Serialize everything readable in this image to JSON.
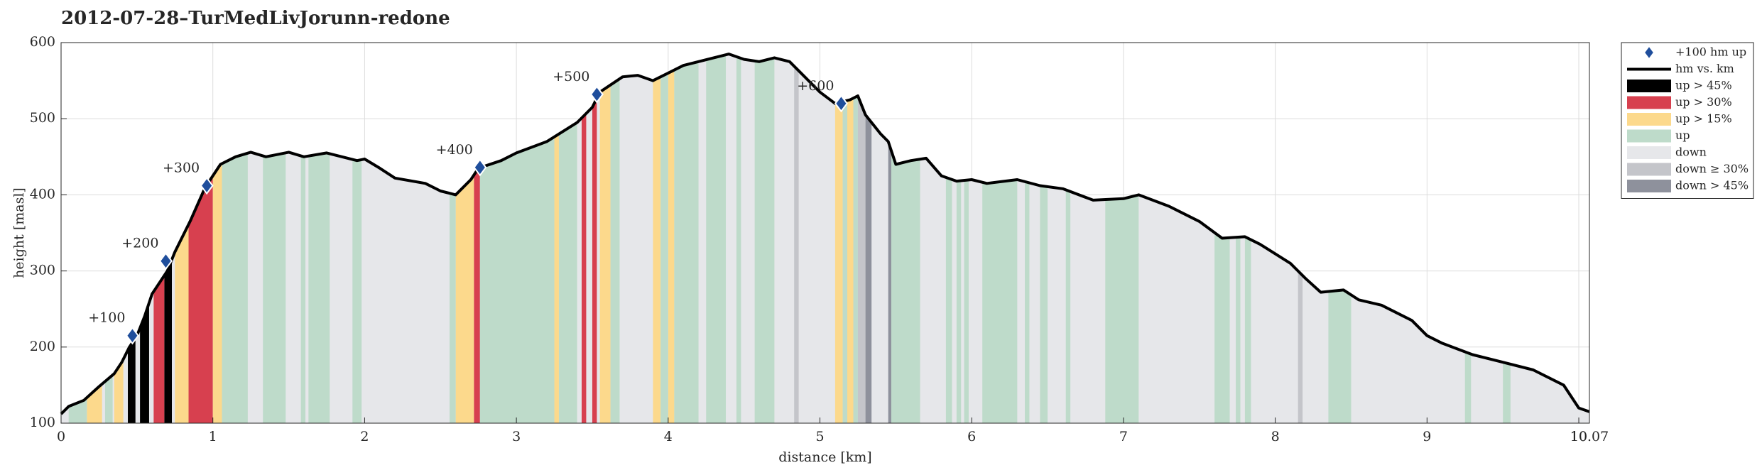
{
  "chart_data": {
    "type": "line",
    "title": "2012-07-28–TurMedLivJorunn-redone",
    "xlabel": "distance [km]",
    "ylabel": "height [masl]",
    "xlim": [
      0,
      10.07
    ],
    "xticks": [
      0,
      1,
      2,
      3,
      4,
      5,
      6,
      7,
      8,
      9,
      10,
      10.07
    ],
    "ylim": [
      100,
      600
    ],
    "yticks": [
      100,
      200,
      300,
      400,
      500,
      600
    ],
    "grid": true,
    "legend": "outside right",
    "series": [
      {
        "name": "hm vs. km",
        "color": "#000000",
        "x": [
          0,
          0.05,
          0.15,
          0.25,
          0.35,
          0.4,
          0.45,
          0.5,
          0.55,
          0.6,
          0.7,
          0.75,
          0.85,
          0.95,
          1.0,
          1.05,
          1.15,
          1.25,
          1.35,
          1.5,
          1.6,
          1.75,
          1.85,
          1.95,
          2.0,
          2.1,
          2.2,
          2.4,
          2.5,
          2.6,
          2.7,
          2.75,
          2.9,
          3.0,
          3.2,
          3.4,
          3.5,
          3.55,
          3.7,
          3.8,
          3.9,
          4.0,
          4.1,
          4.3,
          4.4,
          4.5,
          4.6,
          4.7,
          4.8,
          4.9,
          5.0,
          5.1,
          5.2,
          5.25,
          5.3,
          5.4,
          5.45,
          5.5,
          5.6,
          5.7,
          5.8,
          5.9,
          6.0,
          6.1,
          6.3,
          6.45,
          6.6,
          6.8,
          7.0,
          7.1,
          7.3,
          7.5,
          7.65,
          7.8,
          7.9,
          8.1,
          8.2,
          8.3,
          8.45,
          8.55,
          8.7,
          8.9,
          9.0,
          9.1,
          9.3,
          9.5,
          9.7,
          9.9,
          10.0,
          10.07
        ],
        "values": [
          112,
          122,
          130,
          148,
          165,
          180,
          200,
          215,
          240,
          270,
          300,
          325,
          365,
          410,
          425,
          440,
          450,
          456,
          450,
          456,
          450,
          455,
          450,
          445,
          447,
          435,
          422,
          415,
          405,
          400,
          420,
          435,
          445,
          455,
          470,
          495,
          515,
          535,
          555,
          557,
          550,
          560,
          570,
          580,
          585,
          578,
          575,
          580,
          575,
          555,
          535,
          520,
          525,
          530,
          505,
          480,
          470,
          440,
          445,
          448,
          425,
          418,
          420,
          415,
          420,
          412,
          408,
          393,
          395,
          400,
          385,
          365,
          343,
          345,
          335,
          310,
          290,
          272,
          275,
          262,
          255,
          235,
          215,
          205,
          190,
          180,
          170,
          150,
          120,
          115
        ]
      }
    ],
    "markers": {
      "name": "+100 hm up",
      "color": "#1f4e9c",
      "x": [
        0.47,
        0.69,
        0.96,
        2.76,
        3.53,
        5.14
      ],
      "values": [
        215,
        313,
        412,
        436,
        532,
        520
      ],
      "labels": [
        "+100",
        "+200",
        "+300",
        "+400",
        "+500",
        "+600"
      ]
    },
    "bands": [
      {
        "name": "up > 45%",
        "color": "#000000",
        "ranges": [
          [
            0.44,
            0.49
          ],
          [
            0.52,
            0.58
          ],
          [
            0.68,
            0.73
          ]
        ]
      },
      {
        "name": "up > 30%",
        "color": "#d7404f",
        "ranges": [
          [
            0.61,
            0.68
          ],
          [
            0.84,
            1.0
          ],
          [
            2.72,
            2.76
          ],
          [
            3.43,
            3.46
          ],
          [
            3.5,
            3.53
          ]
        ]
      },
      {
        "name": "up > 15%",
        "color": "#fcd98c",
        "ranges": [
          [
            0.17,
            0.27
          ],
          [
            0.35,
            0.41
          ],
          [
            0.75,
            0.84
          ],
          [
            1.0,
            1.06
          ],
          [
            2.6,
            2.72
          ],
          [
            3.25,
            3.28
          ],
          [
            3.55,
            3.62
          ],
          [
            3.9,
            3.95
          ],
          [
            4.0,
            4.04
          ],
          [
            5.1,
            5.15
          ],
          [
            5.18,
            5.22
          ]
        ]
      },
      {
        "name": "up",
        "color": "#bedbca",
        "ranges": [
          [
            0.05,
            0.17
          ],
          [
            0.29,
            0.34
          ],
          [
            1.06,
            1.23
          ],
          [
            1.33,
            1.48
          ],
          [
            1.58,
            1.61
          ],
          [
            1.63,
            1.77
          ],
          [
            1.92,
            1.98
          ],
          [
            2.56,
            2.6
          ],
          [
            2.76,
            3.25
          ],
          [
            3.28,
            3.4
          ],
          [
            3.62,
            3.68
          ],
          [
            3.95,
            4.0
          ],
          [
            4.04,
            4.2
          ],
          [
            4.25,
            4.38
          ],
          [
            4.45,
            4.48
          ],
          [
            4.57,
            4.7
          ],
          [
            5.15,
            5.18
          ],
          [
            5.22,
            5.25
          ],
          [
            5.47,
            5.66
          ],
          [
            5.83,
            5.87
          ],
          [
            5.9,
            5.93
          ],
          [
            5.95,
            5.98
          ],
          [
            6.07,
            6.3
          ],
          [
            6.35,
            6.38
          ],
          [
            6.45,
            6.5
          ],
          [
            6.62,
            6.65
          ],
          [
            6.88,
            7.1
          ],
          [
            7.6,
            7.7
          ],
          [
            7.74,
            7.77
          ],
          [
            7.8,
            7.84
          ],
          [
            8.35,
            8.5
          ],
          [
            9.25,
            9.29
          ],
          [
            9.5,
            9.55
          ]
        ]
      },
      {
        "name": "down",
        "color": "#e6e7ea"
      },
      {
        "name": "down ≥ 30%",
        "color": "#c4c5ca",
        "ranges": [
          [
            4.83,
            4.86
          ],
          [
            5.25,
            5.3
          ],
          [
            8.15,
            8.18
          ]
        ]
      },
      {
        "name": "down > 45%",
        "color": "#8e919c",
        "ranges": [
          [
            5.3,
            5.34
          ],
          [
            5.45,
            5.47
          ]
        ]
      }
    ]
  }
}
